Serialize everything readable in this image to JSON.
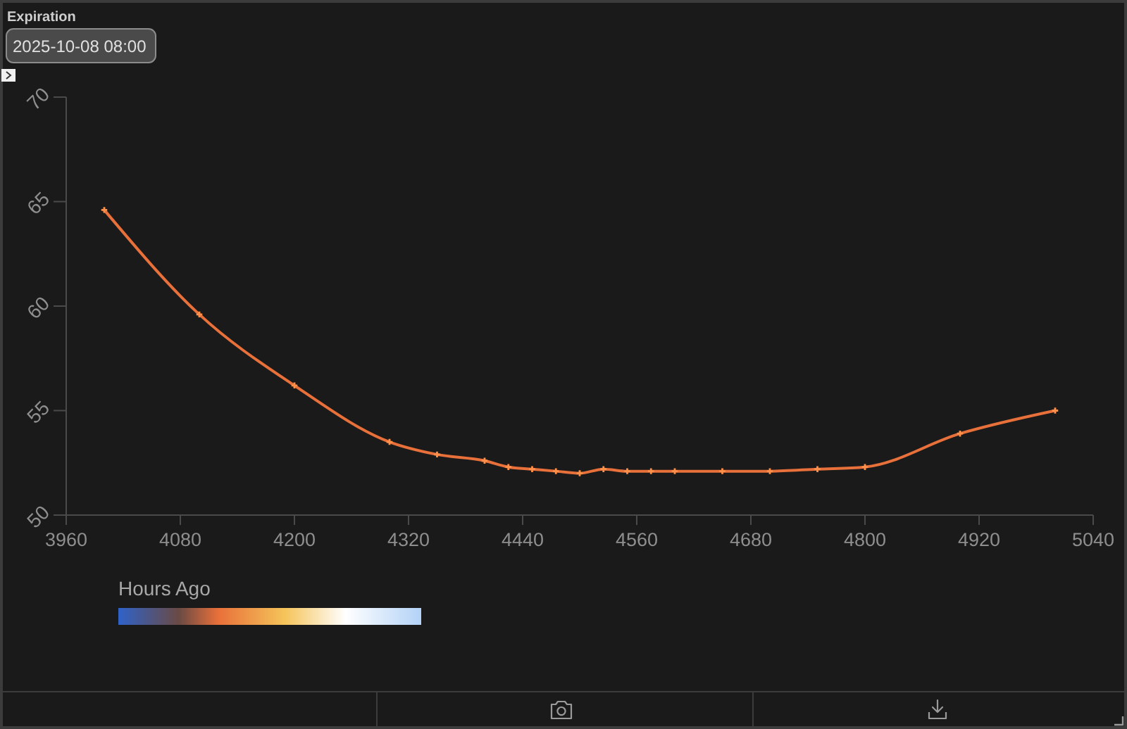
{
  "chart_data": {
    "type": "line",
    "title": "Expiration",
    "subtitle": "2025-10-08 08:00",
    "legend_title": "Hours Ago",
    "x": [
      4000,
      4100,
      4200,
      4300,
      4350,
      4400,
      4425,
      4450,
      4475,
      4500,
      4525,
      4550,
      4575,
      4600,
      4650,
      4700,
      4750,
      4800,
      4900,
      5000
    ],
    "series": [
      {
        "color": "#e8703a",
        "values": [
          64.6,
          59.6,
          56.2,
          53.5,
          52.9,
          52.6,
          52.3,
          52.2,
          52.1,
          52.0,
          52.2,
          52.1,
          52.1,
          52.1,
          52.1,
          52.1,
          52.2,
          52.3,
          53.9,
          55.0
        ]
      }
    ],
    "xlim": [
      3960,
      5040
    ],
    "xticks": [
      3960,
      4080,
      4200,
      4320,
      4440,
      4560,
      4680,
      4800,
      4920,
      5040
    ],
    "ylim": [
      50,
      70
    ],
    "yticks": [
      50,
      55,
      60,
      65,
      70
    ],
    "marker": "cross"
  }
}
